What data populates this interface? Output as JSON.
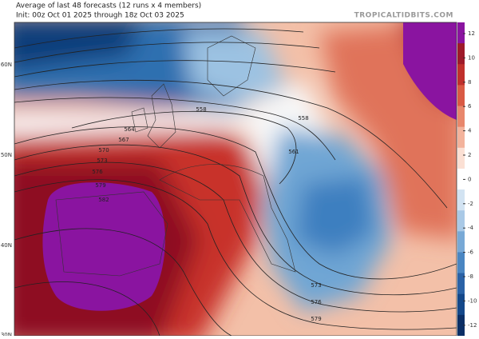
{
  "header": {
    "subtitle": "Average of last 48 forecasts (12 runs x 4 members)",
    "init": "Init: 00z Oct 01 2025 through 18z Oct 03 2025",
    "watermark": "TROPICALTIDBITS.COM"
  },
  "latitude_labels": [
    "60N",
    "50N",
    "40N",
    "30N"
  ],
  "colorbar": {
    "ticks": [
      12,
      10,
      8,
      6,
      4,
      2,
      0,
      -2,
      -4,
      -6,
      -8,
      -10,
      -12
    ]
  },
  "contour_labels": [
    "558",
    "558",
    "561",
    "564",
    "567",
    "570",
    "573",
    "576",
    "579",
    "582",
    "573",
    "576",
    "579"
  ]
}
